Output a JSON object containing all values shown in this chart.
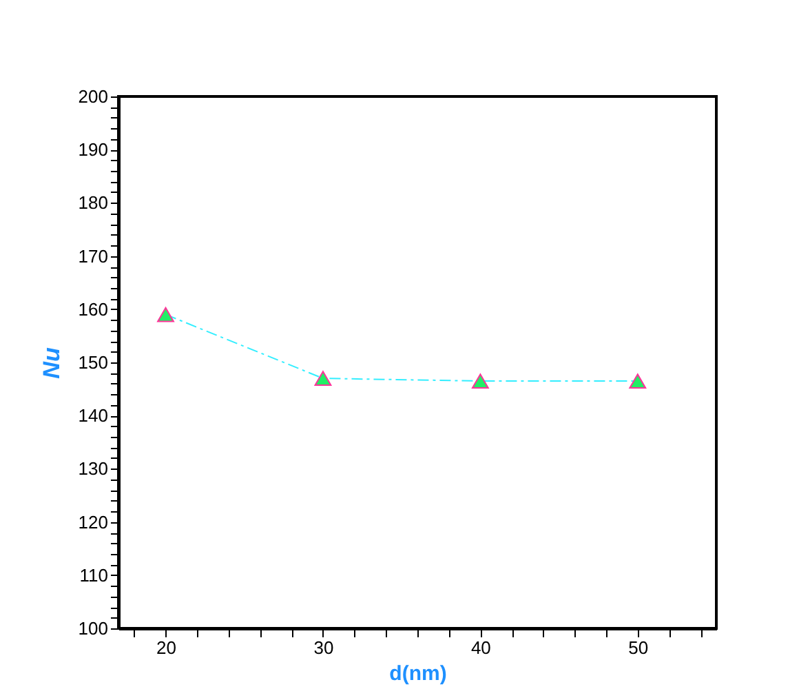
{
  "chart_data": {
    "type": "line",
    "xlabel": "d(nm)",
    "ylabel": "Nu",
    "x": [
      20,
      30,
      40,
      50
    ],
    "series": [
      {
        "color": "#22ee66",
        "values": [
          159,
          147,
          146.5,
          146.5
        ]
      }
    ],
    "xlim": [
      17,
      55
    ],
    "xticks": [
      {
        "value": 18,
        "label": null
      },
      20,
      {
        "value": 22,
        "label": null
      },
      {
        "value": 24,
        "label": null
      },
      {
        "value": 26,
        "label": null
      },
      {
        "value": 28,
        "label": null
      },
      30,
      {
        "value": 32,
        "label": null
      },
      {
        "value": 34,
        "label": null
      },
      {
        "value": 36,
        "label": null
      },
      {
        "value": 38,
        "label": null
      },
      40,
      {
        "value": 42,
        "label": null
      },
      {
        "value": 44,
        "label": null
      },
      {
        "value": 46,
        "label": null
      },
      {
        "value": 48,
        "label": null
      },
      50,
      {
        "value": 52,
        "label": null
      },
      {
        "value": 54,
        "label": null
      }
    ],
    "ylim": [
      100,
      200
    ],
    "yticks": [
      100,
      {
        "value": 102,
        "label": null
      },
      {
        "value": 104,
        "label": null
      },
      {
        "value": 106,
        "label": null
      },
      {
        "value": 108,
        "label": null
      },
      110,
      {
        "value": 112,
        "label": null
      },
      {
        "value": 114,
        "label": null
      },
      {
        "value": 116,
        "label": null
      },
      {
        "value": 118,
        "label": null
      },
      120,
      {
        "value": 122,
        "label": null
      },
      {
        "value": 124,
        "label": null
      },
      {
        "value": 126,
        "label": null
      },
      {
        "value": 128,
        "label": null
      },
      130,
      {
        "value": 132,
        "label": null
      },
      {
        "value": 134,
        "label": null
      },
      {
        "value": 136,
        "label": null
      },
      {
        "value": 138,
        "label": null
      },
      140,
      {
        "value": 142,
        "label": null
      },
      {
        "value": 144,
        "label": null
      },
      {
        "value": 146,
        "label": null
      },
      {
        "value": 148,
        "label": null
      },
      150,
      {
        "value": 152,
        "label": null
      },
      {
        "value": 154,
        "label": null
      },
      {
        "value": 156,
        "label": null
      },
      {
        "value": 158,
        "label": null
      },
      160,
      {
        "value": 162,
        "label": null
      },
      {
        "value": 164,
        "label": null
      },
      {
        "value": 166,
        "label": null
      },
      {
        "value": 168,
        "label": null
      },
      170,
      {
        "value": 172,
        "label": null
      },
      {
        "value": 174,
        "label": null
      },
      {
        "value": 176,
        "label": null
      },
      {
        "value": 178,
        "label": null
      },
      180,
      {
        "value": 182,
        "label": null
      },
      {
        "value": 184,
        "label": null
      },
      {
        "value": 186,
        "label": null
      },
      {
        "value": 188,
        "label": null
      },
      190,
      {
        "value": 192,
        "label": null
      },
      {
        "value": 194,
        "label": null
      },
      {
        "value": 196,
        "label": null
      },
      {
        "value": 198,
        "label": null
      },
      200
    ],
    "marker": "triangle",
    "line_style": "dashed",
    "grid": false
  }
}
